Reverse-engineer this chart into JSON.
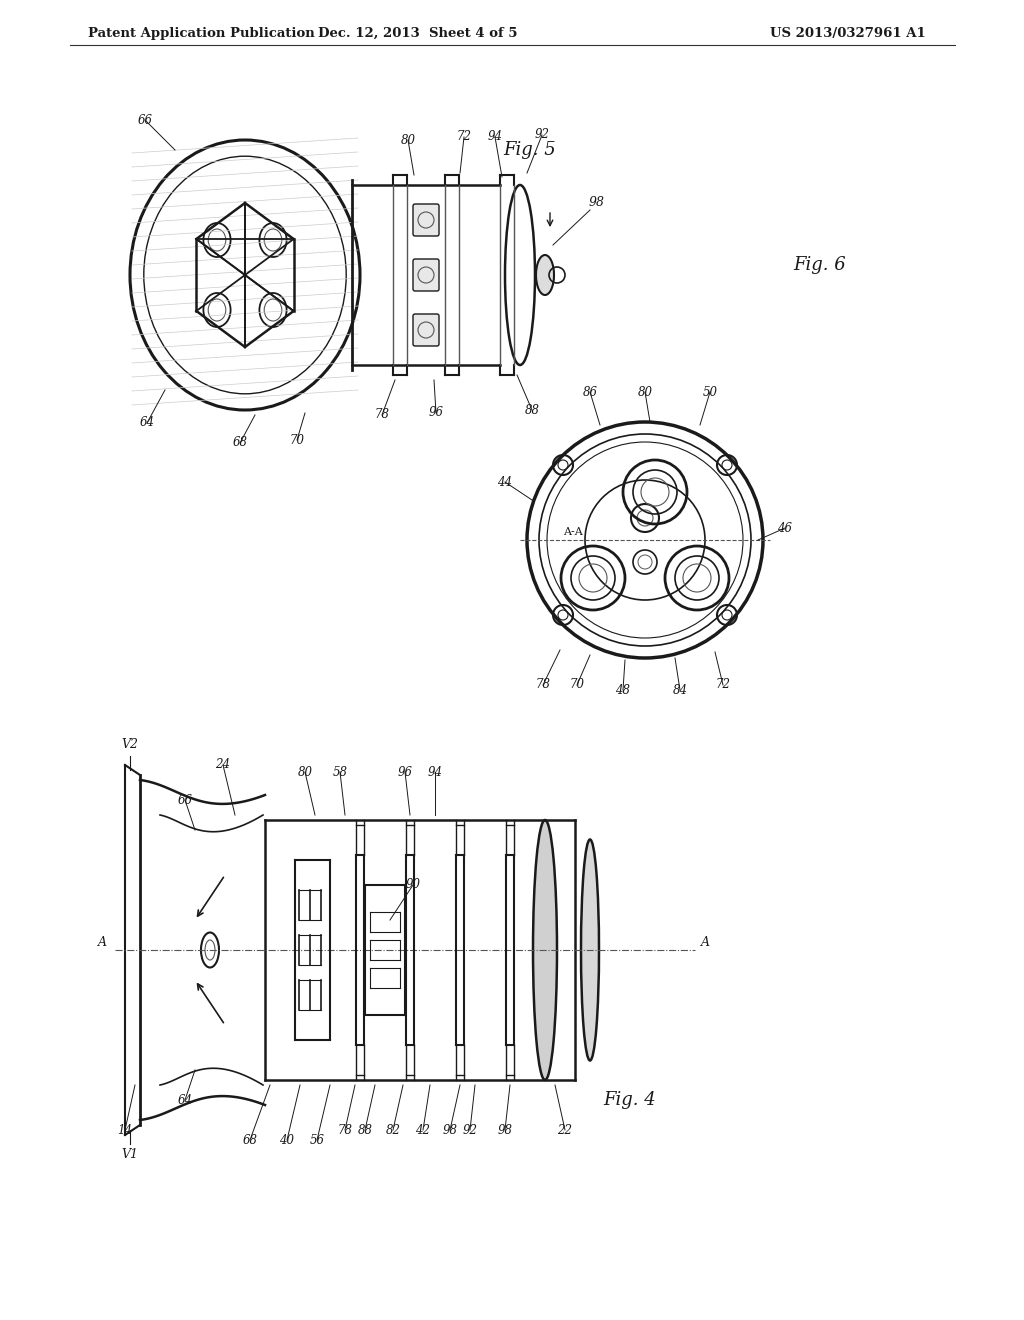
{
  "bg_color": "#ffffff",
  "header_left": "Patent Application Publication",
  "header_mid": "Dec. 12, 2013  Sheet 4 of 5",
  "header_right": "US 2013/0327961 A1",
  "fig5_label": "Fig. 5",
  "fig6_label": "Fig. 6",
  "fig4_label": "Fig. 4",
  "lc": "#1a1a1a",
  "dg": "#555555",
  "lg": "#bbbbbb"
}
